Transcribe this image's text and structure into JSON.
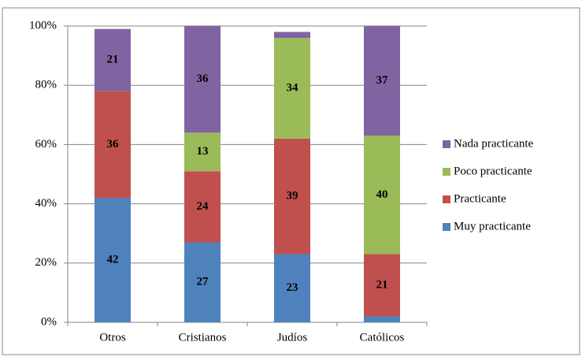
{
  "chart_data": {
    "type": "stacked-bar",
    "categories": [
      "Otros",
      "Cristianos",
      "Judíos",
      "Católicos"
    ],
    "series": [
      {
        "name": "Muy practicante",
        "color": "#4f81bd",
        "values": [
          42,
          27,
          23,
          2
        ]
      },
      {
        "name": "Practicante",
        "color": "#c0504d",
        "values": [
          36,
          24,
          39,
          21
        ]
      },
      {
        "name": "Poco practicante",
        "color": "#9bbb59",
        "values": [
          0,
          13,
          34,
          40
        ]
      },
      {
        "name": "Nada practicante",
        "color": "#8064a2",
        "values": [
          21,
          36,
          2,
          37
        ]
      }
    ],
    "ylim": [
      0,
      100
    ],
    "yticks": [
      {
        "value": 0,
        "label": "0%"
      },
      {
        "value": 20,
        "label": "20%"
      },
      {
        "value": 40,
        "label": "40%"
      },
      {
        "value": 60,
        "label": "60%"
      },
      {
        "value": 80,
        "label": "80%"
      },
      {
        "value": 100,
        "label": "100%"
      }
    ],
    "grid": true,
    "legend": "right"
  }
}
